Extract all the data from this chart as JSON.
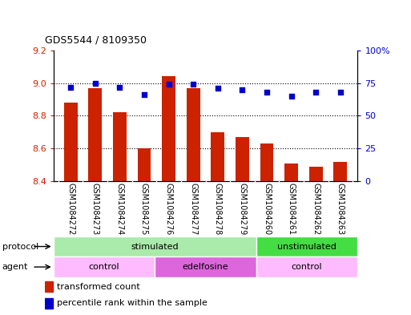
{
  "title": "GDS5544 / 8109350",
  "samples": [
    "GSM1084272",
    "GSM1084273",
    "GSM1084274",
    "GSM1084275",
    "GSM1084276",
    "GSM1084277",
    "GSM1084278",
    "GSM1084279",
    "GSM1084260",
    "GSM1084261",
    "GSM1084262",
    "GSM1084263"
  ],
  "transformed_counts": [
    8.88,
    8.97,
    8.82,
    8.6,
    9.04,
    8.97,
    8.7,
    8.67,
    8.63,
    8.51,
    8.49,
    8.52
  ],
  "percentile_ranks": [
    72,
    75,
    72,
    66,
    74,
    74,
    71,
    70,
    68,
    65,
    68,
    68
  ],
  "ylim_left": [
    8.4,
    9.2
  ],
  "ylim_right": [
    0,
    100
  ],
  "yticks_left": [
    8.4,
    8.6,
    8.8,
    9.0,
    9.2
  ],
  "yticks_right": [
    0,
    25,
    50,
    75,
    100
  ],
  "ytick_labels_right": [
    "0",
    "25",
    "50",
    "75",
    "100%"
  ],
  "bar_color": "#cc2200",
  "dot_color": "#0000cc",
  "protocol_groups": [
    {
      "label": "stimulated",
      "start": 0,
      "end": 8,
      "color": "#aaeaaa"
    },
    {
      "label": "unstimulated",
      "start": 8,
      "end": 12,
      "color": "#44dd44"
    }
  ],
  "agent_groups": [
    {
      "label": "control",
      "start": 0,
      "end": 4,
      "color": "#ffbbff"
    },
    {
      "label": "edelfosine",
      "start": 4,
      "end": 8,
      "color": "#dd66dd"
    },
    {
      "label": "control",
      "start": 8,
      "end": 12,
      "color": "#ffbbff"
    }
  ],
  "protocol_label": "protocol",
  "agent_label": "agent",
  "legend_bar_label": "transformed count",
  "legend_dot_label": "percentile rank within the sample",
  "bg_color": "#ffffff",
  "sample_bg_color": "#cccccc"
}
